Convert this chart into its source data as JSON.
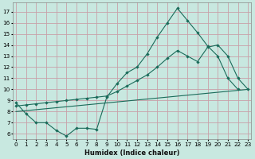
{
  "xlabel": "Humidex (Indice chaleur)",
  "bg_color": "#c8e8e0",
  "grid_color": "#c8a0a8",
  "line_color": "#1a6b5a",
  "xlim": [
    -0.3,
    23.3
  ],
  "ylim": [
    5.5,
    17.8
  ],
  "xticks": [
    0,
    1,
    2,
    3,
    4,
    5,
    6,
    7,
    8,
    9,
    10,
    11,
    12,
    13,
    14,
    15,
    16,
    17,
    18,
    19,
    20,
    21,
    22,
    23
  ],
  "yticks": [
    6,
    7,
    8,
    9,
    10,
    11,
    12,
    13,
    14,
    15,
    16,
    17
  ],
  "curve1_x": [
    0,
    1,
    2,
    3,
    4,
    5,
    6,
    7,
    8,
    9,
    10,
    11,
    12,
    13,
    14,
    15,
    16,
    17,
    18,
    19,
    20,
    21,
    22
  ],
  "curve1_y": [
    8.8,
    7.8,
    7.0,
    7.0,
    6.3,
    5.8,
    6.5,
    6.5,
    6.4,
    9.3,
    10.5,
    11.5,
    12.0,
    13.2,
    14.7,
    16.0,
    17.3,
    16.2,
    15.1,
    13.9,
    13.0,
    11.0,
    10.0
  ],
  "curve2_x": [
    0,
    1,
    2,
    3,
    4,
    5,
    6,
    7,
    8,
    9,
    10,
    11,
    12,
    13,
    14,
    15,
    16,
    17,
    18,
    19,
    20,
    21,
    22,
    23
  ],
  "curve2_y": [
    8.5,
    8.6,
    8.7,
    8.8,
    8.9,
    9.0,
    9.1,
    9.2,
    9.3,
    9.4,
    9.8,
    10.3,
    10.8,
    11.3,
    12.0,
    12.8,
    13.5,
    13.0,
    12.5,
    13.8,
    14.0,
    13.0,
    11.0,
    10.0
  ],
  "curve3_x": [
    0,
    23
  ],
  "curve3_y": [
    8.0,
    10.0
  ]
}
